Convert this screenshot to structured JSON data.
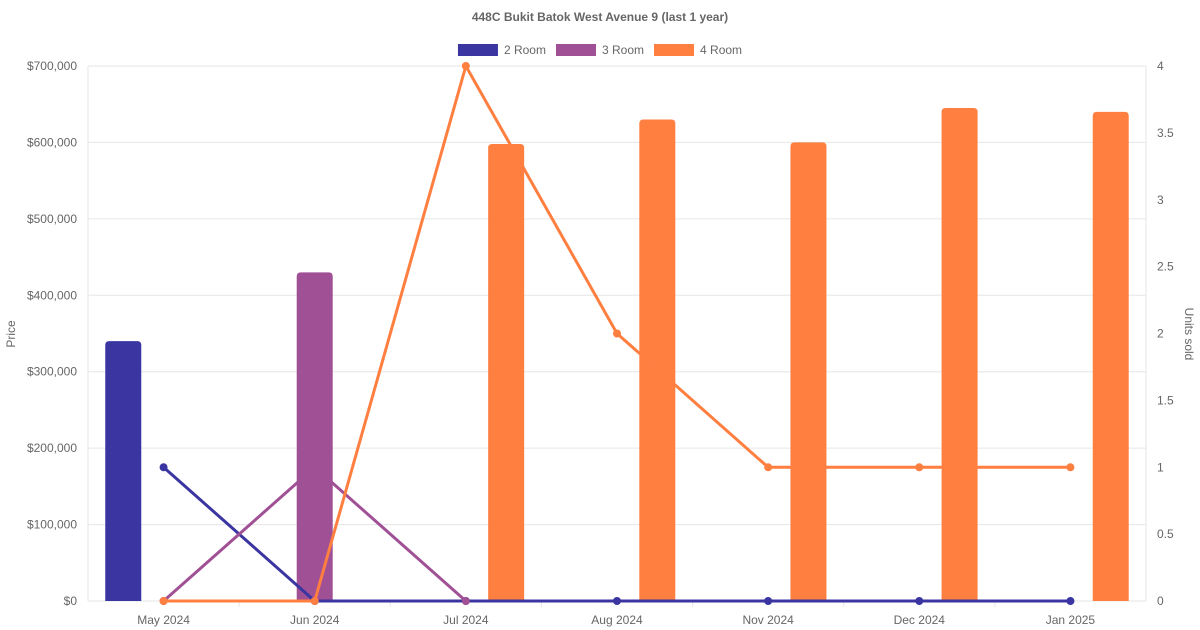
{
  "chart_data": {
    "type": "bar",
    "title": "448C Bukit Batok West Avenue 9 (last 1 year)",
    "categories": [
      "May 2024",
      "Jun 2024",
      "Jul 2024",
      "Aug 2024",
      "Nov 2024",
      "Dec 2024",
      "Jan 2025"
    ],
    "left_axis": {
      "label": "Price",
      "range": [
        0,
        700000
      ],
      "ticks": [
        0,
        100000,
        200000,
        300000,
        400000,
        500000,
        600000,
        700000
      ],
      "tick_labels": [
        "$0",
        "$100,000",
        "$200,000",
        "$300,000",
        "$400,000",
        "$500,000",
        "$600,000",
        "$700,000"
      ]
    },
    "right_axis": {
      "label": "Units sold",
      "range": [
        0,
        4
      ],
      "ticks": [
        0,
        0.5,
        1,
        1.5,
        2,
        2.5,
        3,
        3.5,
        4
      ],
      "tick_labels": [
        "0",
        "0.5",
        "1",
        "1.5",
        "2",
        "2.5",
        "3",
        "3.5",
        "4"
      ]
    },
    "legend": {
      "position": "top"
    },
    "grid": true,
    "series": [
      {
        "name": "2 Room",
        "color": "#3a35a0",
        "price": [
          340000,
          null,
          null,
          null,
          null,
          null,
          null
        ],
        "units": [
          1,
          0,
          0,
          0,
          0,
          0,
          0
        ]
      },
      {
        "name": "3 Room",
        "color": "#a05095",
        "price": [
          null,
          430000,
          null,
          null,
          null,
          null,
          null
        ],
        "units": [
          0,
          1,
          0,
          null,
          null,
          null,
          null
        ]
      },
      {
        "name": "4 Room",
        "color": "#ff7f41",
        "price": [
          null,
          null,
          598000,
          630000,
          600000,
          645000,
          640000
        ],
        "units": [
          0,
          0,
          4,
          2,
          1,
          1,
          1
        ]
      }
    ]
  }
}
